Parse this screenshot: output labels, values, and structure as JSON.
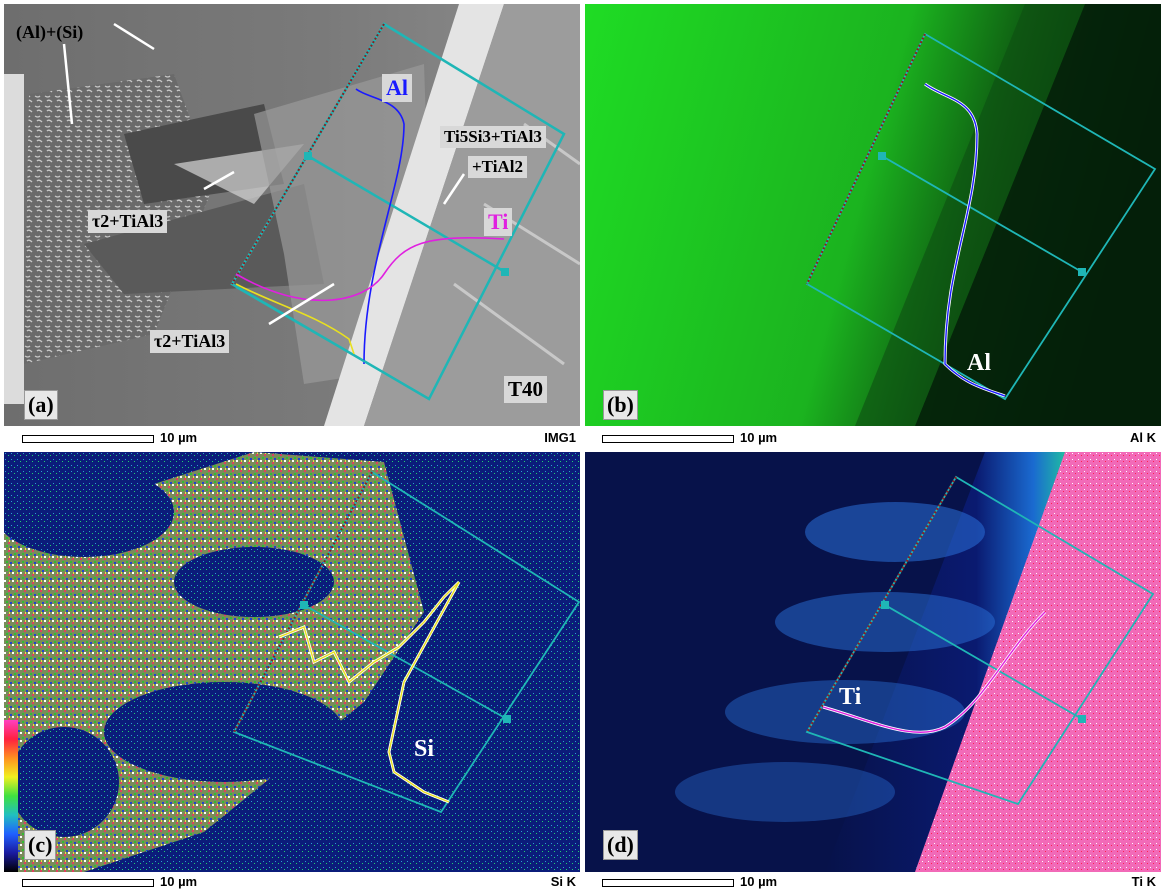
{
  "panels": {
    "a": {
      "label": "(a)",
      "sample": "T40",
      "channel": "IMG1",
      "scale": "10 µm",
      "phases": {
        "al_si": "(Al)+(Si)",
        "tau_upper": "τ2+TiAl3",
        "tau_lower": "τ2+TiAl3",
        "ti5si3": "Ti5Si3+TiAl3",
        "tial2": "+TiAl2"
      },
      "element_al": "Al",
      "element_ti": "Ti"
    },
    "b": {
      "label": "(b)",
      "channel": "Al K",
      "scale": "10 µm",
      "element": "Al"
    },
    "c": {
      "label": "(c)",
      "channel": "Si K",
      "scale": "10 µm",
      "element": "Si"
    },
    "d": {
      "label": "(d)",
      "channel": "Ti K",
      "scale": "10 µm",
      "element": "Ti"
    }
  },
  "colors": {
    "al_line": "#1a1aff",
    "ti_line": "#e020e0",
    "si_line": "#f0e020",
    "box": "#1fb6b6"
  }
}
